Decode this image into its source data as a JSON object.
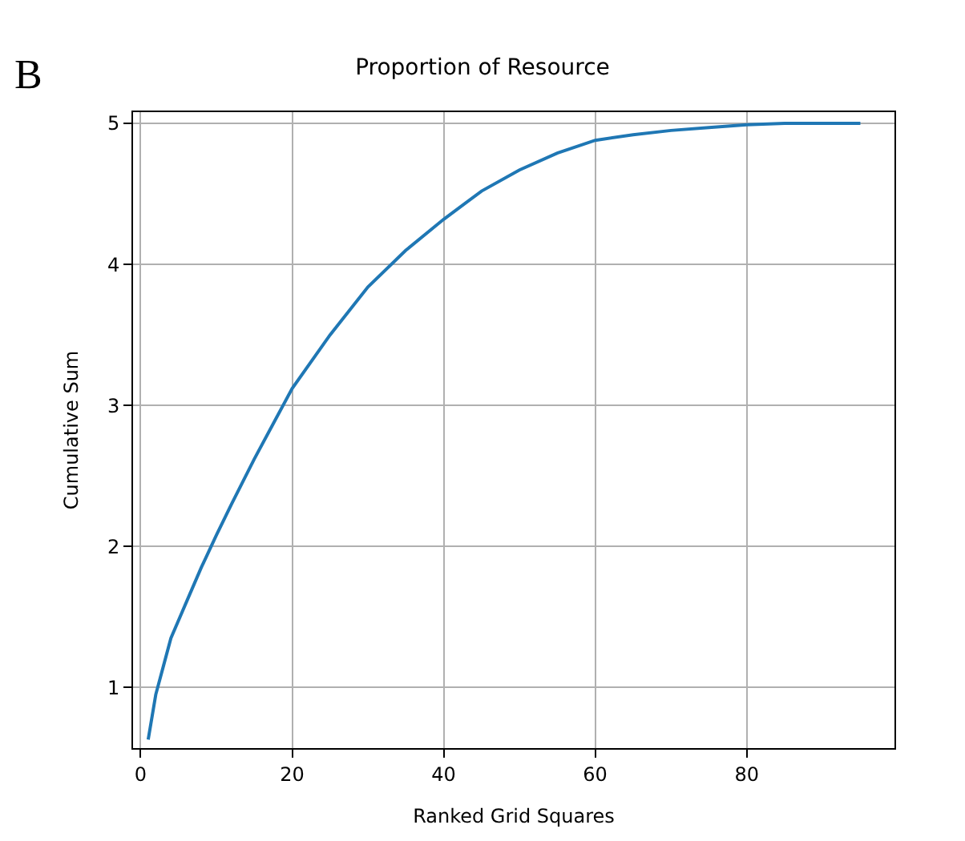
{
  "chart_data": {
    "type": "line",
    "title": "Proportion of Resource",
    "xlabel": "Ranked Grid Squares",
    "ylabel": "Cumulative Sum",
    "annotations": [
      "B"
    ],
    "x": [
      1,
      2,
      3,
      4,
      6,
      8,
      10,
      12,
      15,
      18,
      20,
      25,
      30,
      35,
      40,
      45,
      50,
      55,
      60,
      65,
      70,
      75,
      80,
      85,
      90,
      95
    ],
    "series": [
      {
        "color": "#1f77b4",
        "values": [
          0.63,
          0.95,
          1.15,
          1.35,
          1.6,
          1.85,
          2.08,
          2.3,
          2.62,
          2.92,
          3.12,
          3.5,
          3.84,
          4.1,
          4.32,
          4.52,
          4.67,
          4.79,
          4.88,
          4.92,
          4.95,
          4.97,
          4.99,
          5.0,
          5.0,
          5.0
        ]
      }
    ],
    "xlim": [
      -1,
      99.5
    ],
    "ylim": [
      0.57,
      5.08
    ],
    "xticks": [
      0,
      20,
      40,
      60,
      80
    ],
    "yticks": [
      1,
      2,
      3,
      4,
      5
    ],
    "grid": true,
    "marker": "none",
    "line_style": "solid"
  }
}
